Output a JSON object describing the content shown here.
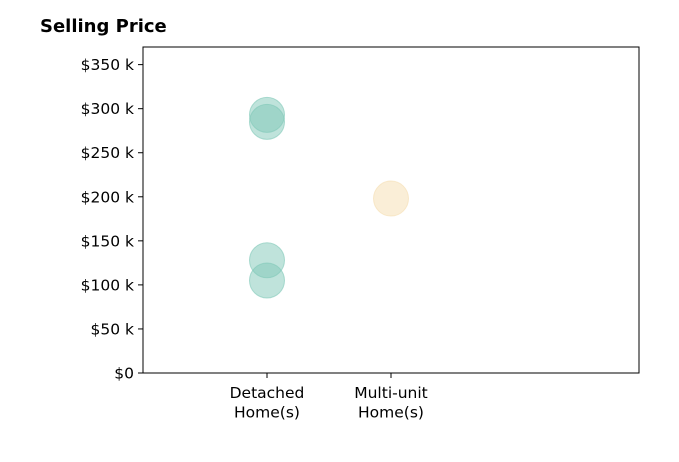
{
  "chart_data": {
    "type": "scatter",
    "title": "Selling Price",
    "xlabel": "",
    "ylabel": "",
    "categories": [
      "Detached\nHome(s)",
      "Multi-unit\nHome(s)"
    ],
    "ylim": [
      0,
      370000
    ],
    "yticks": [
      0,
      50000,
      100000,
      150000,
      200000,
      250000,
      300000,
      350000
    ],
    "ytick_labels": [
      "$0",
      "$50 k",
      "$100 k",
      "$150 k",
      "$200 k",
      "$250 k",
      "$300 k",
      "$350 k"
    ],
    "grid": false,
    "points": [
      {
        "category": 0,
        "y": 293000,
        "color": "#7fc8b8"
      },
      {
        "category": 0,
        "y": 285000,
        "color": "#7fc8b8"
      },
      {
        "category": 0,
        "y": 128000,
        "color": "#7fc8b8"
      },
      {
        "category": 0,
        "y": 105000,
        "color": "#7fc8b8"
      },
      {
        "category": 1,
        "y": 198000,
        "color": "#f5deb0"
      }
    ],
    "point_opacity": 0.5
  }
}
